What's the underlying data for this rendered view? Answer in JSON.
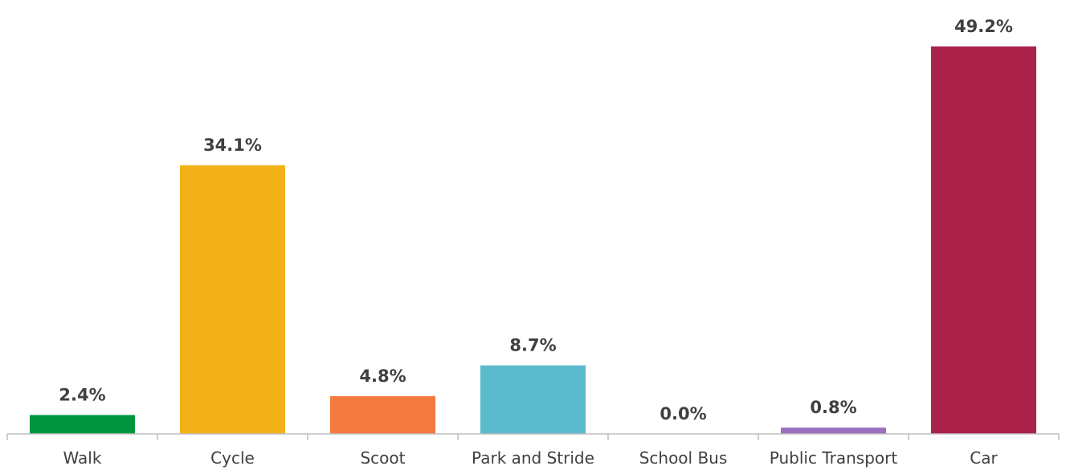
{
  "chart_data": {
    "type": "bar",
    "title": "",
    "xlabel": "",
    "ylabel": "",
    "categories": [
      "Walk",
      "Cycle",
      "Scoot",
      "Park and Stride",
      "School Bus",
      "Public Transport",
      "Car"
    ],
    "values": [
      2.4,
      34.1,
      4.8,
      8.7,
      0.0,
      0.8,
      49.2
    ],
    "data_labels": [
      "2.4%",
      "34.1%",
      "4.8%",
      "8.7%",
      "0.0%",
      "0.8%",
      "49.2%"
    ],
    "colors": [
      "#009640",
      "#F2B117",
      "#F47A40",
      "#5BBACB",
      "#8DC63F",
      "#9B6FBE",
      "#AA224A"
    ],
    "ylim": [
      0,
      50
    ],
    "grid": false,
    "legend": "none",
    "axis_color": "#BFBFBF",
    "text_color": "#404040"
  }
}
